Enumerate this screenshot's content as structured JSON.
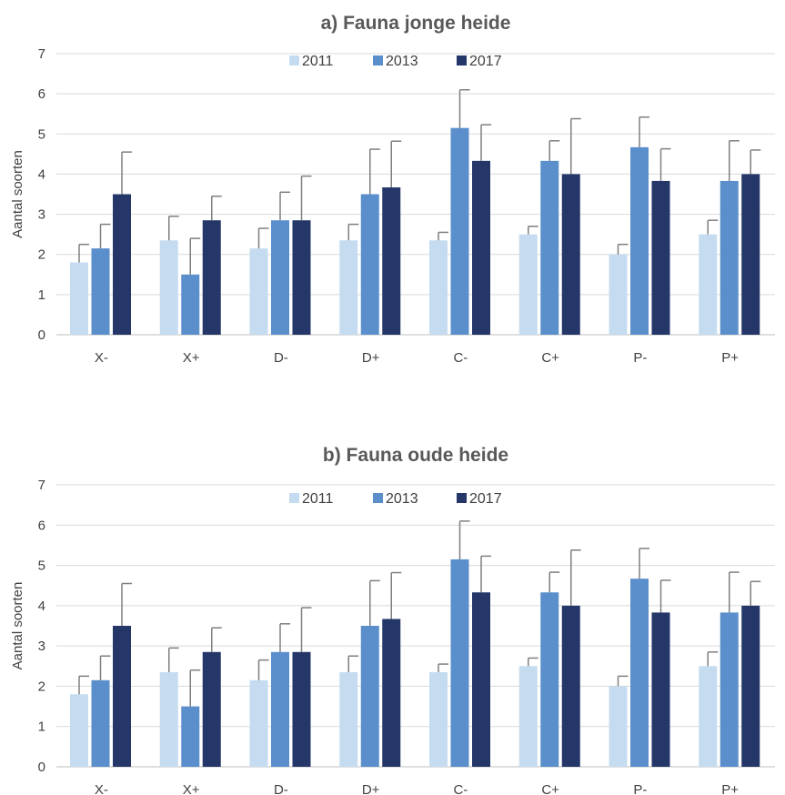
{
  "chart_data": [
    {
      "type": "bar",
      "title": "a) Fauna jonge heide",
      "xlabel": "",
      "ylabel": "Aantal soorten",
      "ylim": [
        0,
        7
      ],
      "yticks": [
        0,
        1,
        2,
        3,
        4,
        5,
        6,
        7
      ],
      "grid": true,
      "legend_position": "top",
      "error_bars": true,
      "categories": [
        "X-",
        "X+",
        "D-",
        "D+",
        "C-",
        "C+",
        "P-",
        "P+"
      ],
      "series": [
        {
          "name": "2011",
          "color": "#c5dcf0",
          "values": [
            1.8,
            2.35,
            2.15,
            2.35,
            2.35,
            2.5,
            2.0,
            2.5
          ],
          "errors": [
            0.45,
            0.6,
            0.5,
            0.4,
            0.2,
            0.2,
            0.25,
            0.35
          ]
        },
        {
          "name": "2013",
          "color": "#5b8fcb",
          "values": [
            2.15,
            1.5,
            2.85,
            3.5,
            5.15,
            4.33,
            4.67,
            3.83
          ],
          "errors": [
            0.6,
            0.9,
            0.7,
            1.12,
            0.95,
            0.5,
            0.75,
            1.0
          ]
        },
        {
          "name": "2017",
          "color": "#243768",
          "values": [
            3.5,
            2.85,
            2.85,
            3.67,
            4.33,
            4.0,
            3.83,
            4.0
          ],
          "errors": [
            1.05,
            0.6,
            1.1,
            1.15,
            0.9,
            1.38,
            0.8,
            0.6
          ]
        }
      ]
    },
    {
      "type": "bar",
      "title": "b) Fauna oude heide",
      "xlabel": "",
      "ylabel": "Aantal soorten",
      "ylim": [
        0,
        7
      ],
      "yticks": [
        0,
        1,
        2,
        3,
        4,
        5,
        6,
        7
      ],
      "grid": true,
      "legend_position": "top",
      "error_bars": true,
      "categories": [
        "X-",
        "X+",
        "D-",
        "D+",
        "C-",
        "C+",
        "P-",
        "P+"
      ],
      "series": [
        {
          "name": "2011",
          "color": "#c5dcf0",
          "values": [
            1.8,
            2.35,
            2.15,
            2.35,
            2.35,
            2.5,
            2.0,
            2.5
          ],
          "errors": [
            0.45,
            0.6,
            0.5,
            0.4,
            0.2,
            0.2,
            0.25,
            0.35
          ]
        },
        {
          "name": "2013",
          "color": "#5b8fcb",
          "values": [
            2.15,
            1.5,
            2.85,
            3.5,
            5.15,
            4.33,
            4.67,
            3.83
          ],
          "errors": [
            0.6,
            0.9,
            0.7,
            1.12,
            0.95,
            0.5,
            0.75,
            1.0
          ]
        },
        {
          "name": "2017",
          "color": "#243768",
          "values": [
            3.5,
            2.85,
            2.85,
            3.67,
            4.33,
            4.0,
            3.83,
            4.0
          ],
          "errors": [
            1.05,
            0.6,
            1.1,
            1.15,
            0.9,
            1.38,
            0.8,
            0.6
          ]
        }
      ]
    }
  ]
}
